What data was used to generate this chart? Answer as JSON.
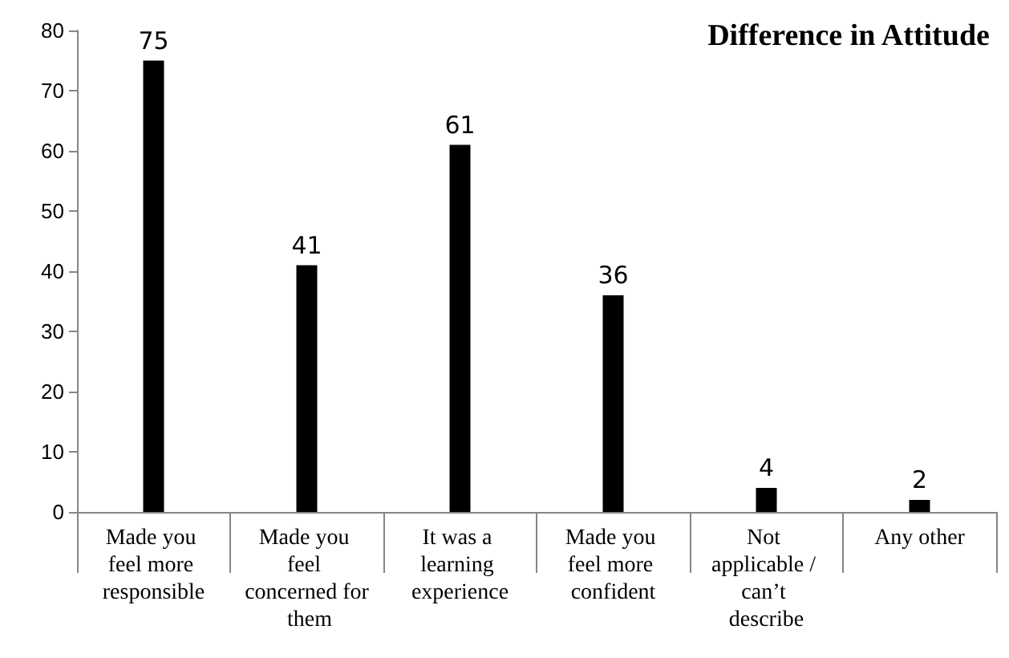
{
  "chart_data": {
    "type": "bar",
    "title": "Difference in Attitude",
    "categories": [
      "Made you feel more responsible",
      "Made you feel concerned for them",
      "It was a learning experience",
      "Made you feel more confident",
      "Not applicable / can’t describe",
      "Any other"
    ],
    "values": [
      75,
      41,
      61,
      36,
      4,
      2
    ],
    "color": "#000000",
    "ylim": [
      0,
      80
    ],
    "yticks": [
      0,
      10,
      20,
      30,
      40,
      50,
      60,
      70,
      80
    ],
    "grid": false,
    "data_labels": true
  }
}
